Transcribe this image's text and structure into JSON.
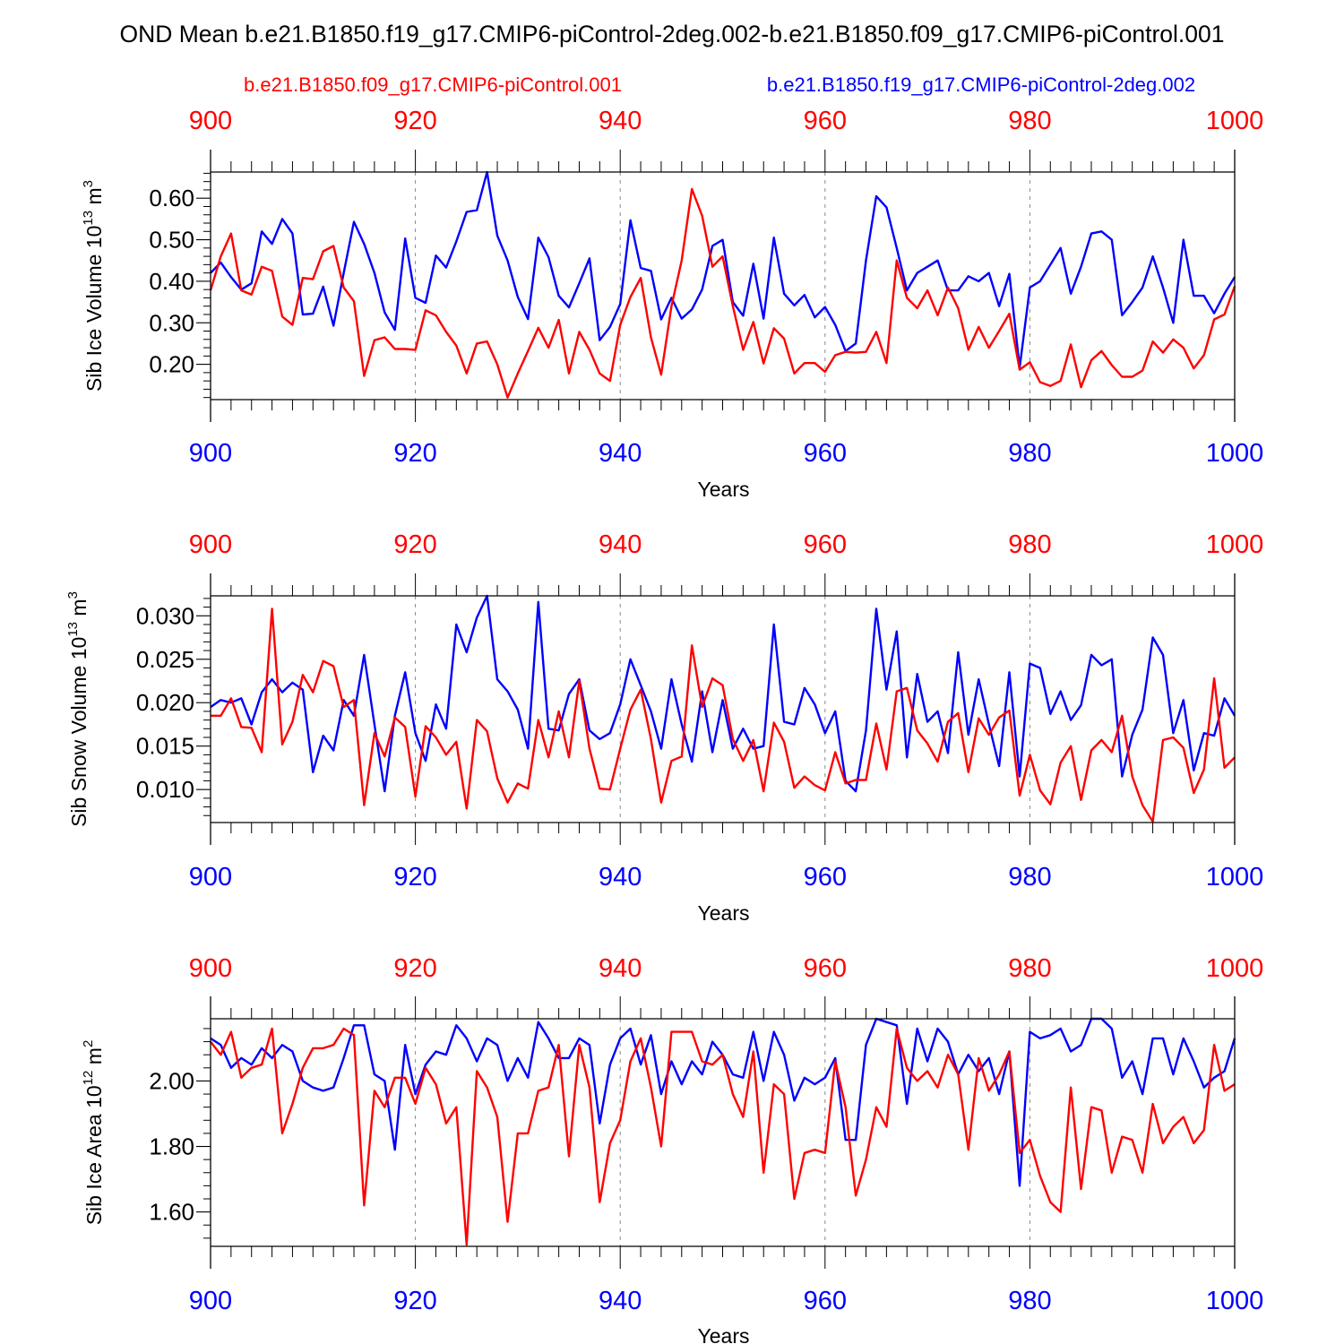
{
  "title": "OND Mean b.e21.B1850.f19_g17.CMIP6-piControl-2deg.002-b.e21.B1850.f09_g17.CMIP6-piControl.001",
  "legend": {
    "red_label": "b.e21.B1850.f09_g17.CMIP6-piControl.001",
    "blue_label": "b.e21.B1850.f19_g17.CMIP6-piControl-2deg.002"
  },
  "colors": {
    "red": "#ff0000",
    "blue": "#0000ff",
    "axis": "#000000",
    "grid": "#888888"
  },
  "chart_data": [
    {
      "type": "line",
      "ylabel_main": "Sib Ice Volume 10",
      "ylabel_exp": "13",
      "ylabel_unit": " m",
      "ylabel_unit_exp": "3",
      "xlabel": "Years",
      "xlim": [
        900,
        1000
      ],
      "ylim": [
        0.115,
        0.663
      ],
      "xticks": [
        900,
        920,
        940,
        960,
        980,
        1000
      ],
      "xtick_labels": [
        "900",
        "920",
        "940",
        "960",
        "980",
        "1000"
      ],
      "yticks": [
        0.2,
        0.3,
        0.4,
        0.5,
        0.6
      ],
      "ytick_labels": [
        "0.20",
        "0.30",
        "0.40",
        "0.50",
        "0.60"
      ],
      "yminor_step": 0.02,
      "x_start": 900,
      "series": [
        {
          "name": "b.e21.B1850.f19_g17.CMIP6-piControl-2deg.002",
          "color": "blue",
          "values": [
            0.42,
            0.445,
            0.41,
            0.38,
            0.395,
            0.52,
            0.49,
            0.55,
            0.515,
            0.32,
            0.322,
            0.387,
            0.293,
            0.42,
            0.543,
            0.49,
            0.42,
            0.325,
            0.283,
            0.503,
            0.36,
            0.348,
            0.462,
            0.433,
            0.496,
            0.567,
            0.571,
            0.663,
            0.51,
            0.45,
            0.362,
            0.309,
            0.505,
            0.458,
            0.365,
            0.337,
            0.395,
            0.455,
            0.258,
            0.29,
            0.345,
            0.547,
            0.432,
            0.425,
            0.308,
            0.36,
            0.31,
            0.332,
            0.38,
            0.485,
            0.5,
            0.35,
            0.317,
            0.442,
            0.31,
            0.505,
            0.37,
            0.342,
            0.367,
            0.313,
            0.338,
            0.295,
            0.232,
            0.25,
            0.45,
            0.605,
            0.578,
            0.48,
            0.378,
            0.42,
            0.435,
            0.45,
            0.378,
            0.378,
            0.412,
            0.4,
            0.42,
            0.34,
            0.418,
            0.192,
            0.385,
            0.4,
            0.44,
            0.48,
            0.37,
            0.435,
            0.515,
            0.52,
            0.5,
            0.318,
            0.35,
            0.385,
            0.46,
            0.385,
            0.3,
            0.5,
            0.365,
            0.365,
            0.323,
            0.37,
            0.41
          ]
        },
        {
          "name": "b.e21.B1850.f09_g17.CMIP6-piControl.001",
          "color": "red",
          "values": [
            0.378,
            0.46,
            0.515,
            0.378,
            0.368,
            0.435,
            0.425,
            0.315,
            0.295,
            0.408,
            0.405,
            0.472,
            0.485,
            0.385,
            0.352,
            0.172,
            0.258,
            0.265,
            0.237,
            0.237,
            0.235,
            0.33,
            0.318,
            0.278,
            0.245,
            0.178,
            0.25,
            0.255,
            0.2,
            0.12,
            0.178,
            0.232,
            0.288,
            0.24,
            0.307,
            0.178,
            0.278,
            0.235,
            0.178,
            0.16,
            0.295,
            0.362,
            0.408,
            0.265,
            0.175,
            0.34,
            0.45,
            0.622,
            0.558,
            0.435,
            0.46,
            0.34,
            0.235,
            0.302,
            0.202,
            0.287,
            0.262,
            0.178,
            0.203,
            0.203,
            0.182,
            0.222,
            0.23,
            0.228,
            0.23,
            0.278,
            0.203,
            0.45,
            0.36,
            0.335,
            0.378,
            0.318,
            0.385,
            0.335,
            0.235,
            0.29,
            0.24,
            0.28,
            0.322,
            0.187,
            0.205,
            0.157,
            0.148,
            0.16,
            0.248,
            0.145,
            0.21,
            0.232,
            0.198,
            0.17,
            0.17,
            0.185,
            0.255,
            0.228,
            0.26,
            0.24,
            0.19,
            0.222,
            0.308,
            0.32,
            0.388
          ]
        }
      ]
    },
    {
      "type": "line",
      "ylabel_main": "Sib Snow Volume 10",
      "ylabel_exp": "13",
      "ylabel_unit": " m",
      "ylabel_unit_exp": "3",
      "xlabel": "Years",
      "xlim": [
        900,
        1000
      ],
      "ylim": [
        0.0062,
        0.0323
      ],
      "xticks": [
        900,
        920,
        940,
        960,
        980,
        1000
      ],
      "xtick_labels": [
        "900",
        "920",
        "940",
        "960",
        "980",
        "1000"
      ],
      "yticks": [
        0.01,
        0.015,
        0.02,
        0.025,
        0.03
      ],
      "ytick_labels": [
        "0.010",
        "0.015",
        "0.020",
        "0.025",
        "0.030"
      ],
      "yminor_step": 0.001,
      "x_start": 900,
      "series": [
        {
          "name": "b.e21.B1850.f19_g17.CMIP6-piControl-2deg.002",
          "color": "blue",
          "values": [
            0.0195,
            0.0203,
            0.02,
            0.0205,
            0.0175,
            0.0212,
            0.0227,
            0.0212,
            0.0223,
            0.0215,
            0.012,
            0.0162,
            0.0145,
            0.0203,
            0.0185,
            0.0255,
            0.0175,
            0.0098,
            0.0185,
            0.0235,
            0.0165,
            0.0133,
            0.0198,
            0.017,
            0.029,
            0.0258,
            0.0298,
            0.0323,
            0.0227,
            0.0213,
            0.0192,
            0.0147,
            0.0316,
            0.017,
            0.0168,
            0.021,
            0.0227,
            0.0168,
            0.0158,
            0.0165,
            0.0198,
            0.025,
            0.022,
            0.019,
            0.0147,
            0.0227,
            0.0175,
            0.0132,
            0.0213,
            0.0143,
            0.0203,
            0.0147,
            0.017,
            0.0147,
            0.015,
            0.029,
            0.0178,
            0.0175,
            0.0217,
            0.0198,
            0.0165,
            0.019,
            0.011,
            0.0098,
            0.0168,
            0.0308,
            0.0215,
            0.0282,
            0.0137,
            0.0233,
            0.0178,
            0.019,
            0.0142,
            0.0258,
            0.0163,
            0.0227,
            0.0175,
            0.0127,
            0.0235,
            0.0115,
            0.0245,
            0.024,
            0.0187,
            0.0213,
            0.018,
            0.0197,
            0.0255,
            0.0243,
            0.025,
            0.0115,
            0.0163,
            0.0192,
            0.0275,
            0.0255,
            0.0165,
            0.0203,
            0.0122,
            0.0165,
            0.0162,
            0.0205,
            0.0185
          ]
        },
        {
          "name": "b.e21.B1850.f09_g17.CMIP6-piControl.001",
          "color": "red",
          "values": [
            0.0185,
            0.0185,
            0.0205,
            0.0172,
            0.0171,
            0.0143,
            0.0308,
            0.0152,
            0.0178,
            0.0232,
            0.0212,
            0.0248,
            0.0242,
            0.0195,
            0.0203,
            0.0082,
            0.0165,
            0.0138,
            0.0183,
            0.0172,
            0.0092,
            0.0173,
            0.016,
            0.014,
            0.0155,
            0.0078,
            0.018,
            0.0167,
            0.0113,
            0.0085,
            0.0107,
            0.0101,
            0.018,
            0.0137,
            0.019,
            0.0137,
            0.0225,
            0.0147,
            0.0101,
            0.01,
            0.0147,
            0.0192,
            0.0215,
            0.0158,
            0.0085,
            0.0133,
            0.0138,
            0.0266,
            0.0195,
            0.0228,
            0.022,
            0.0158,
            0.0133,
            0.0157,
            0.0098,
            0.0177,
            0.0155,
            0.0102,
            0.0115,
            0.0105,
            0.0099,
            0.0143,
            0.0107,
            0.0111,
            0.0111,
            0.0176,
            0.0123,
            0.0213,
            0.0217,
            0.0168,
            0.0153,
            0.0132,
            0.0178,
            0.0188,
            0.012,
            0.0182,
            0.0163,
            0.0183,
            0.0191,
            0.0093,
            0.014,
            0.0099,
            0.0083,
            0.0131,
            0.015,
            0.0088,
            0.0145,
            0.0157,
            0.0143,
            0.0185,
            0.0115,
            0.0082,
            0.0063,
            0.0157,
            0.016,
            0.0148,
            0.0096,
            0.0123,
            0.0228,
            0.0125,
            0.0137
          ]
        }
      ]
    },
    {
      "type": "line",
      "ylabel_main": "Sib Ice Area 10",
      "ylabel_exp": "12",
      "ylabel_unit": " m",
      "ylabel_unit_exp": "2",
      "xlabel": "Years",
      "xlim": [
        900,
        1000
      ],
      "ylim": [
        1.495,
        2.19
      ],
      "xticks": [
        900,
        920,
        940,
        960,
        980,
        1000
      ],
      "xtick_labels": [
        "900",
        "920",
        "940",
        "960",
        "980",
        "1000"
      ],
      "yticks": [
        1.6,
        1.8,
        2.0
      ],
      "ytick_labels": [
        "1.60",
        "1.80",
        "2.00"
      ],
      "yminor_step": 0.04,
      "x_start": 900,
      "series": [
        {
          "name": "b.e21.B1850.f19_g17.CMIP6-piControl-2deg.002",
          "color": "blue",
          "values": [
            2.13,
            2.11,
            2.04,
            2.07,
            2.05,
            2.1,
            2.07,
            2.11,
            2.09,
            2.0,
            1.98,
            1.97,
            1.98,
            2.07,
            2.17,
            2.17,
            2.02,
            2.0,
            1.79,
            2.11,
            1.96,
            2.05,
            2.09,
            2.08,
            2.17,
            2.13,
            2.06,
            2.13,
            2.11,
            2.0,
            2.07,
            2.01,
            2.18,
            2.13,
            2.07,
            2.07,
            2.13,
            2.11,
            1.87,
            2.05,
            2.13,
            2.16,
            2.05,
            2.14,
            1.96,
            2.06,
            1.99,
            2.06,
            2.02,
            2.12,
            2.08,
            2.02,
            2.01,
            2.15,
            2.0,
            2.15,
            2.08,
            1.94,
            2.01,
            1.99,
            2.01,
            2.07,
            1.82,
            1.82,
            2.11,
            2.19,
            2.18,
            2.17,
            1.93,
            2.16,
            2.06,
            2.16,
            2.12,
            2.02,
            2.08,
            2.03,
            2.07,
            1.96,
            2.09,
            1.68,
            2.15,
            2.13,
            2.14,
            2.16,
            2.09,
            2.11,
            2.19,
            2.19,
            2.16,
            2.01,
            2.06,
            1.96,
            2.13,
            2.13,
            2.02,
            2.13,
            2.06,
            1.98,
            2.01,
            2.03,
            2.13
          ]
        },
        {
          "name": "b.e21.B1850.f09_g17.CMIP6-piControl.001",
          "color": "red",
          "values": [
            2.12,
            2.08,
            2.15,
            2.01,
            2.04,
            2.05,
            2.16,
            1.84,
            1.93,
            2.04,
            2.1,
            2.1,
            2.11,
            2.16,
            2.14,
            1.62,
            1.97,
            1.92,
            2.01,
            2.01,
            1.93,
            2.04,
            1.99,
            1.87,
            1.92,
            1.5,
            2.03,
            1.98,
            1.89,
            1.57,
            1.84,
            1.84,
            1.97,
            1.98,
            2.11,
            1.77,
            2.11,
            1.98,
            1.63,
            1.81,
            1.88,
            2.06,
            2.13,
            1.98,
            1.8,
            2.15,
            2.15,
            2.15,
            2.06,
            2.05,
            2.08,
            1.96,
            1.89,
            2.09,
            1.72,
            1.99,
            1.96,
            1.64,
            1.78,
            1.79,
            1.78,
            2.06,
            1.92,
            1.65,
            1.76,
            1.92,
            1.86,
            2.16,
            2.04,
            2.0,
            2.03,
            1.98,
            2.08,
            2.02,
            1.79,
            2.07,
            1.97,
            2.02,
            2.09,
            1.78,
            1.82,
            1.71,
            1.63,
            1.6,
            1.98,
            1.67,
            1.92,
            1.91,
            1.72,
            1.83,
            1.82,
            1.72,
            1.93,
            1.81,
            1.86,
            1.89,
            1.81,
            1.85,
            2.11,
            1.97,
            1.99
          ]
        }
      ]
    }
  ]
}
